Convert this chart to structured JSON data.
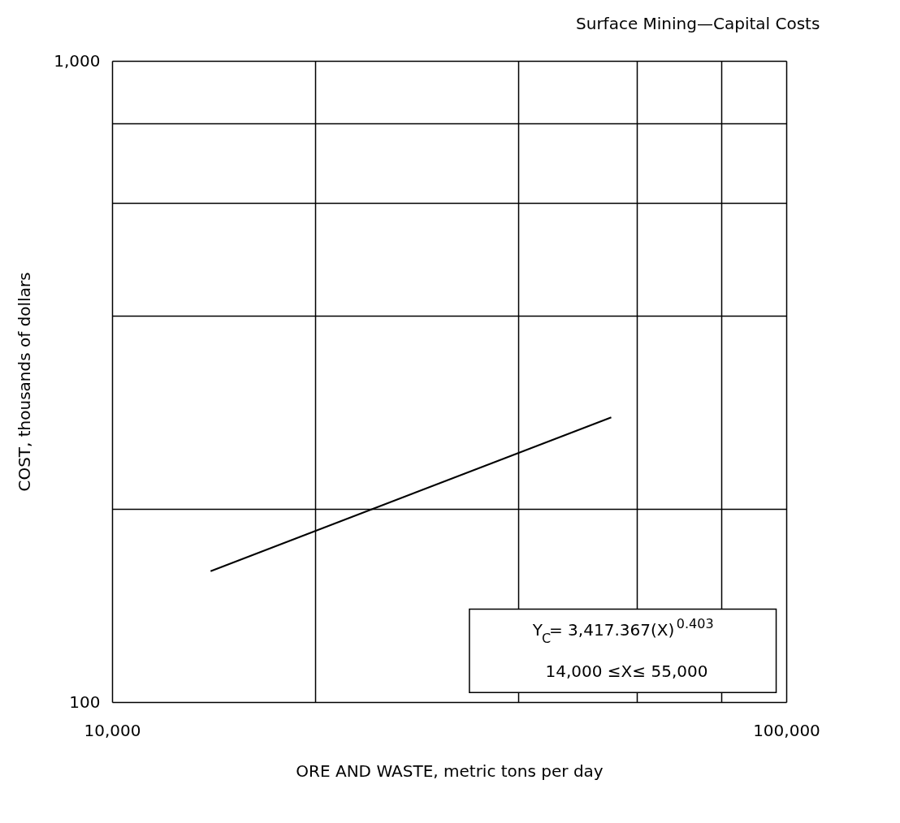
{
  "chart_data": {
    "type": "line",
    "title": "Surface Mining—Capital Costs",
    "xlabel": "ORE AND WASTE, metric tons per day",
    "ylabel": "COST, thousands of dollars",
    "log": "xy",
    "grid": true,
    "marker": "none",
    "line_style": "solid",
    "xlim": [
      10000,
      100000
    ],
    "ylim": [
      100,
      1000
    ],
    "xticks": [
      {
        "value": 10000,
        "label": "10,000"
      },
      {
        "value": 20000,
        "label": null
      },
      {
        "value": 40000,
        "label": null
      },
      {
        "value": 60000,
        "label": null
      },
      {
        "value": 80000,
        "label": null
      },
      {
        "value": 100000,
        "label": "100,000"
      }
    ],
    "yticks": [
      {
        "value": 100,
        "label": "100"
      },
      {
        "value": 200,
        "label": null
      },
      {
        "value": 400,
        "label": null
      },
      {
        "value": 600,
        "label": null
      },
      {
        "value": 800,
        "label": null
      },
      {
        "value": 1000,
        "label": "1,000"
      }
    ],
    "x": [
      14000,
      55000
    ],
    "series": [
      {
        "color": "#000000",
        "values": [
          160,
          278
        ]
      }
    ],
    "annotations": [
      "Y$_{C}$= 3,417.367(X)$^{0.403}$",
      "14,000 ≤X≤ 55,000"
    ]
  }
}
